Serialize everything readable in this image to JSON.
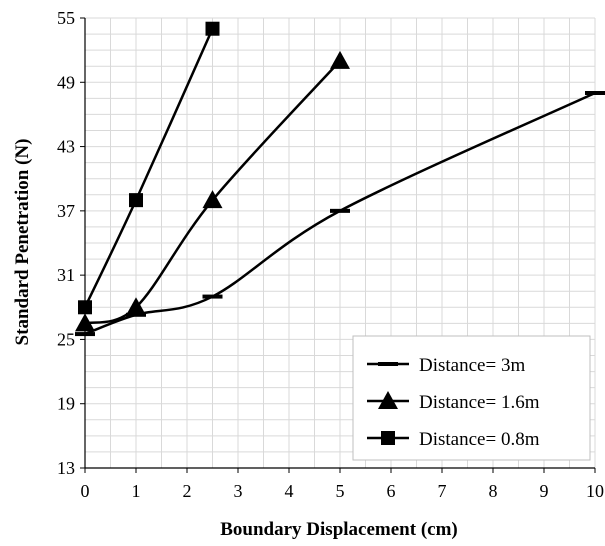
{
  "chart_data": {
    "type": "line",
    "title": "",
    "xlabel": "Boundary Displacement (cm)",
    "ylabel": "Standard Penetration (N)",
    "xlim": [
      0,
      10
    ],
    "ylim": [
      13,
      55
    ],
    "xticks": [
      "0",
      "1",
      "2",
      "3",
      "4",
      "5",
      "6",
      "7",
      "8",
      "9",
      "10"
    ],
    "yticks": [
      "13",
      "19",
      "25",
      "31",
      "37",
      "43",
      "49",
      "55"
    ],
    "grid": true,
    "legend_position": "bottom-right",
    "series": [
      {
        "name": "Distance= 3m",
        "marker": "dash",
        "x": [
          0,
          1,
          2.5,
          5,
          10
        ],
        "y": [
          25.5,
          27.3,
          29,
          37,
          48
        ]
      },
      {
        "name": "Distance= 1.6m",
        "marker": "triangle",
        "x": [
          0,
          1,
          2.5,
          5
        ],
        "y": [
          26.5,
          28,
          38,
          51
        ]
      },
      {
        "name": "Distance= 0.8m",
        "marker": "square",
        "x": [
          0,
          1,
          2.5
        ],
        "y": [
          28,
          38,
          54
        ]
      }
    ],
    "colors": {
      "line": "#000000",
      "grid": "#d9d9d9",
      "axis": "#000000"
    }
  }
}
